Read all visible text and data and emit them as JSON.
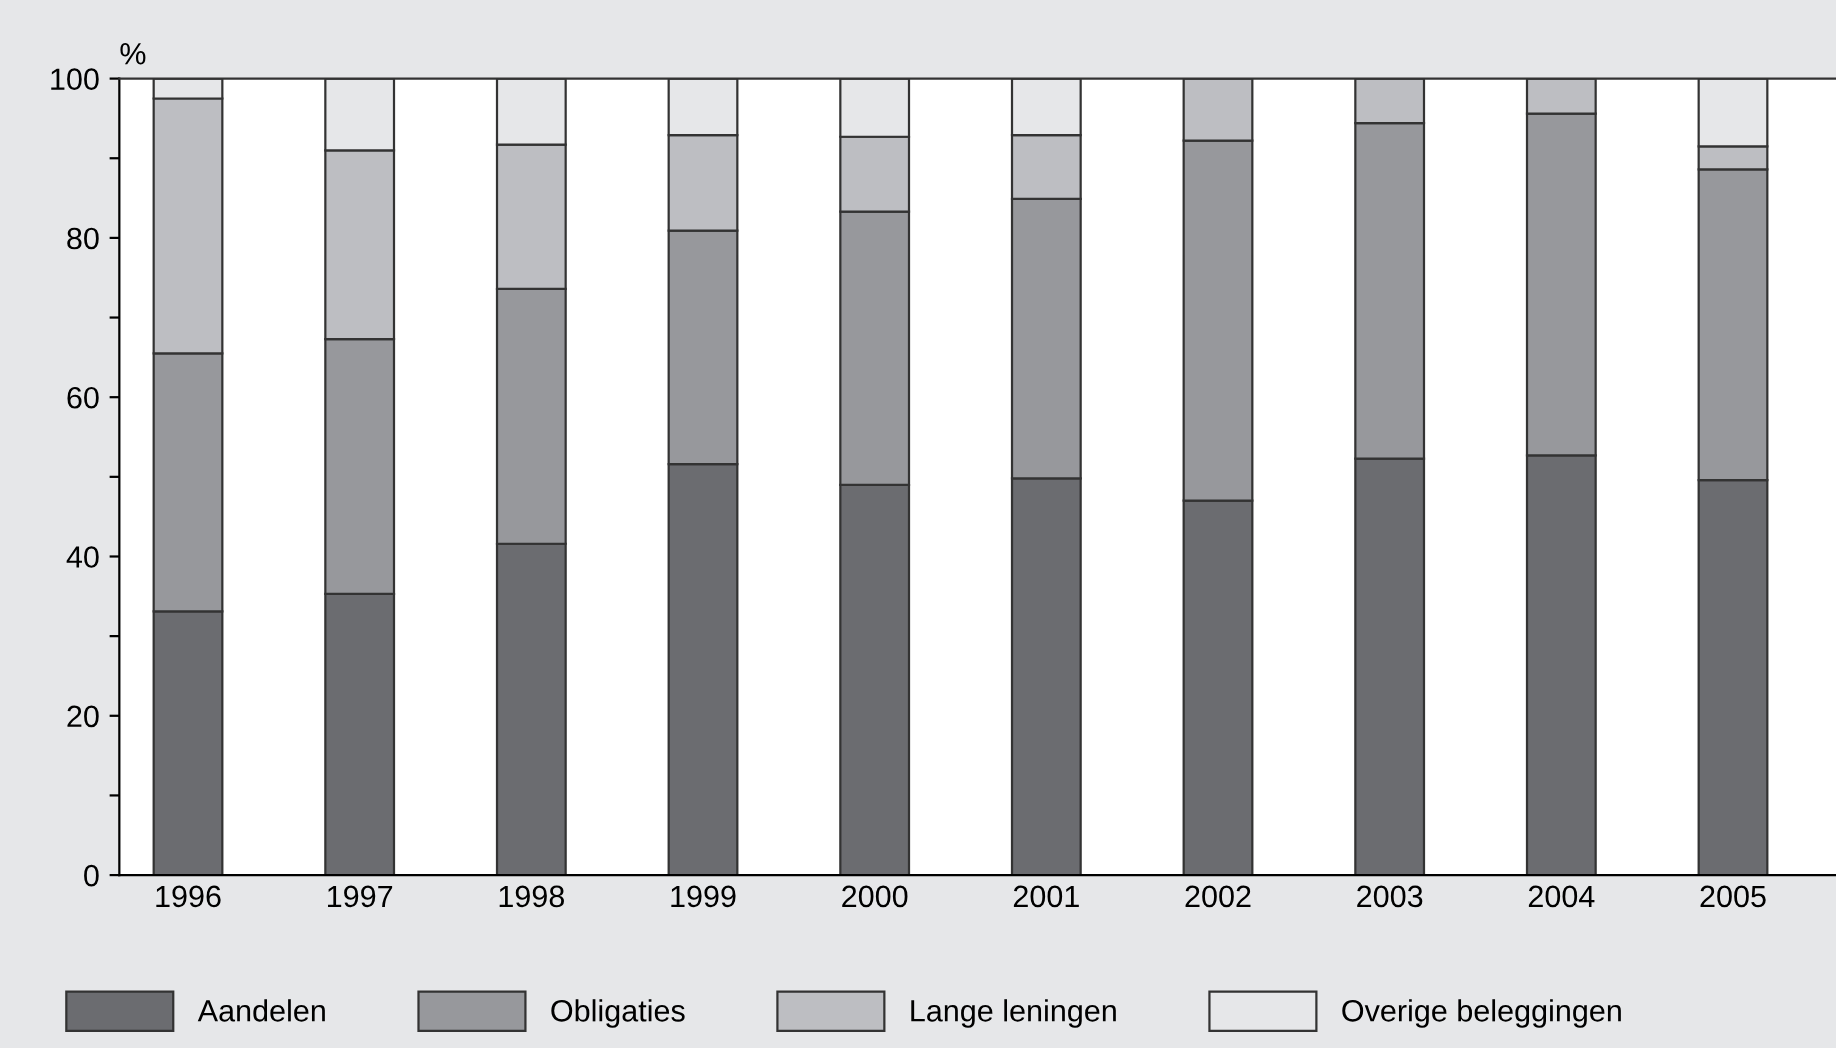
{
  "chart_data": {
    "type": "bar",
    "stacked": true,
    "ylabel": "%",
    "categories": [
      "1996",
      "1997",
      "1998",
      "1999",
      "2000",
      "2001",
      "2002",
      "2003",
      "2004",
      "2005"
    ],
    "series": [
      {
        "name": "Aandelen",
        "color": "#6b6c70",
        "values": [
          33.1,
          35.3,
          41.6,
          51.6,
          49.0,
          49.8,
          47.0,
          52.3,
          52.7,
          49.6
        ]
      },
      {
        "name": "Obligaties",
        "color": "#97989c",
        "values": [
          32.4,
          32.0,
          32.0,
          29.3,
          34.3,
          35.1,
          45.2,
          42.1,
          42.9,
          39.0
        ]
      },
      {
        "name": "Lange leningen",
        "color": "#bdbec2",
        "values": [
          32.0,
          23.7,
          18.1,
          12.0,
          9.4,
          8.0,
          7.8,
          5.6,
          4.4,
          2.9
        ]
      },
      {
        "name": "Overige beleggingen",
        "color": "#e6e7e9",
        "values": [
          2.5,
          9.0,
          8.3,
          7.1,
          7.3,
          7.1,
          null,
          null,
          null,
          8.5
        ]
      }
    ],
    "ylim": [
      0,
      100
    ],
    "yticks": [
      0,
      {
        "value": 10,
        "label": null
      },
      20,
      {
        "value": 30,
        "label": null
      },
      40,
      {
        "value": 50,
        "label": null
      },
      60,
      {
        "value": 70,
        "label": null
      },
      80,
      {
        "value": 90,
        "label": null
      },
      100
    ],
    "grid": false,
    "legend": "bottom"
  }
}
